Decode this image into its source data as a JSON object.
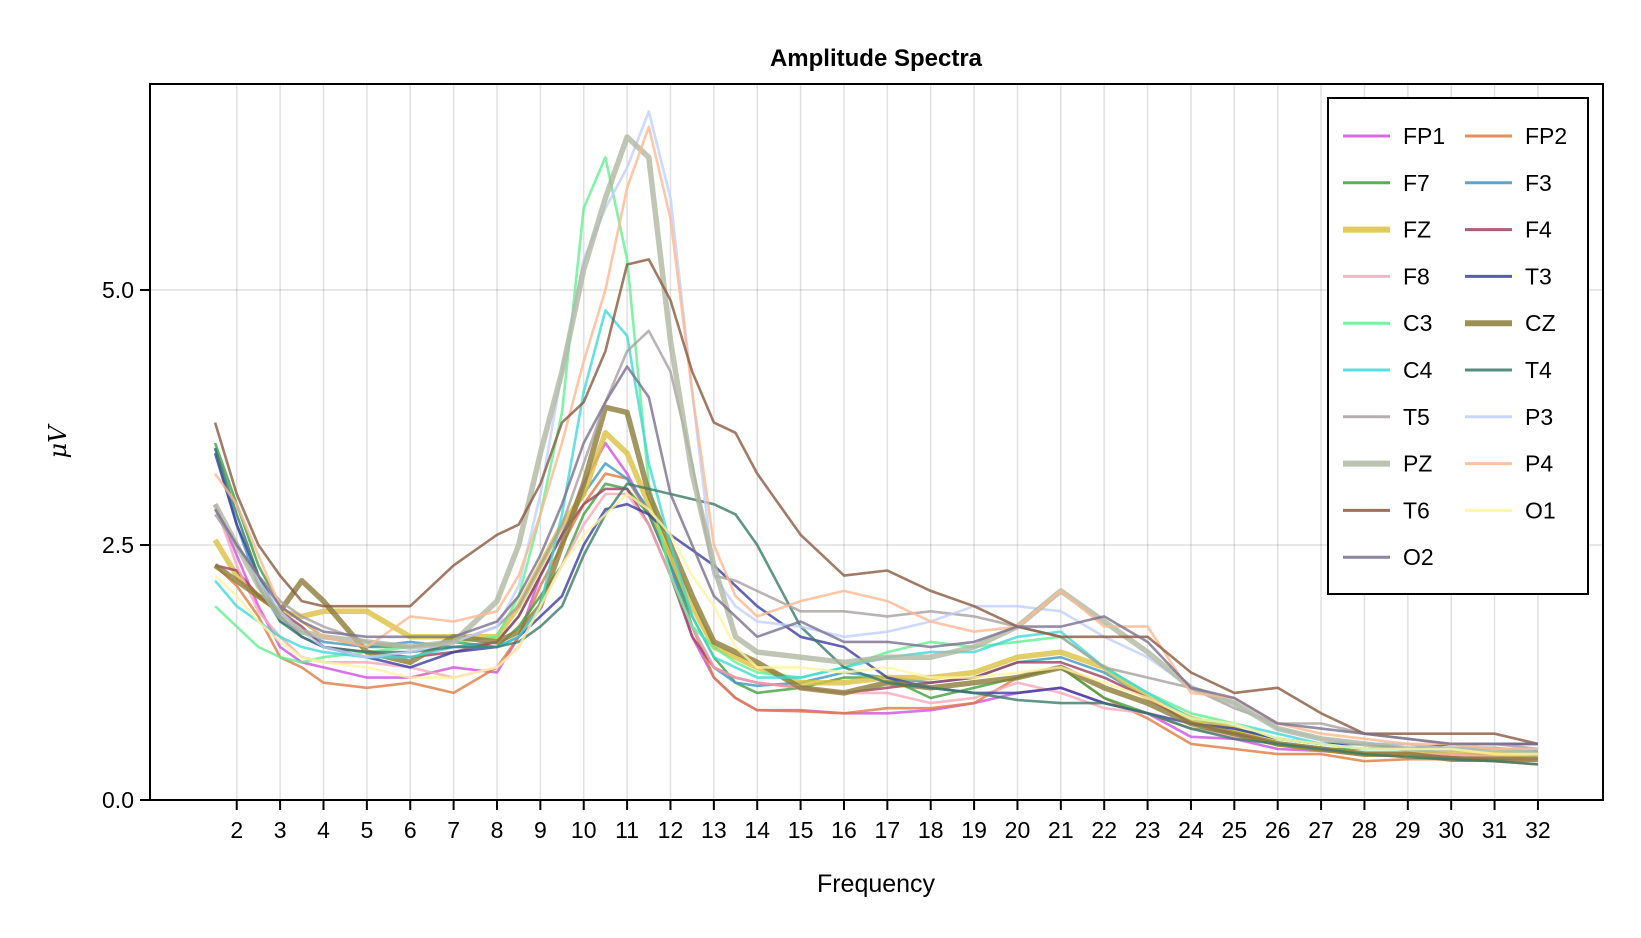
{
  "chart_data": {
    "type": "line",
    "title": "Amplitude Spectra",
    "xlabel": "Frequency",
    "ylabel": "μV",
    "xlim": [
      0,
      33.5
    ],
    "ylim": [
      0,
      7.02
    ],
    "xticks": [
      2,
      3,
      4,
      5,
      6,
      7,
      8,
      9,
      10,
      11,
      12,
      13,
      14,
      15,
      16,
      17,
      18,
      19,
      20,
      21,
      22,
      23,
      24,
      25,
      26,
      27,
      28,
      29,
      30,
      31,
      32
    ],
    "yticks": [
      "0.0",
      "2.5",
      "5.0"
    ],
    "ytick_values": [
      0,
      2.5,
      5.0
    ],
    "grid": true,
    "legend_position": "top-right",
    "legend_columns": 2,
    "x": [
      1.5,
      2,
      2.5,
      3,
      3.5,
      4,
      5,
      6,
      7,
      8,
      8.5,
      9,
      9.5,
      10,
      10.5,
      11,
      11.5,
      12,
      12.5,
      13,
      13.5,
      14,
      15,
      16,
      17,
      18,
      19,
      20,
      21,
      22,
      23,
      24,
      25,
      26,
      27,
      28,
      29,
      30,
      31,
      32
    ],
    "series": [
      {
        "name": "FP1",
        "color": "#d050e0",
        "thick": false,
        "values": [
          2.9,
          2.4,
          1.9,
          1.5,
          1.35,
          1.3,
          1.2,
          1.2,
          1.3,
          1.25,
          1.6,
          2.2,
          2.6,
          3.1,
          3.5,
          3.2,
          2.8,
          2.3,
          1.6,
          1.2,
          1.0,
          0.88,
          0.88,
          0.85,
          0.85,
          0.88,
          0.95,
          1.05,
          1.1,
          0.95,
          0.85,
          0.62,
          0.6,
          0.5,
          0.48,
          0.45,
          0.45,
          0.45,
          0.45,
          0.45
        ]
      },
      {
        "name": "FP2",
        "color": "#e07b40",
        "thick": false,
        "values": [
          2.3,
          2.1,
          1.8,
          1.4,
          1.3,
          1.15,
          1.1,
          1.15,
          1.05,
          1.3,
          1.6,
          2.1,
          2.5,
          2.9,
          3.2,
          3.15,
          2.8,
          2.4,
          1.7,
          1.2,
          1.0,
          0.88,
          0.87,
          0.85,
          0.9,
          0.9,
          0.95,
          1.2,
          1.3,
          1.0,
          0.8,
          0.55,
          0.5,
          0.45,
          0.45,
          0.38,
          0.4,
          0.4,
          0.38,
          0.35
        ]
      },
      {
        "name": "F7",
        "color": "#40a040",
        "thick": false,
        "values": [
          3.5,
          2.9,
          2.3,
          1.9,
          1.75,
          1.6,
          1.5,
          1.5,
          1.55,
          1.5,
          1.7,
          2.0,
          2.3,
          2.8,
          3.1,
          3.05,
          2.8,
          2.3,
          1.8,
          1.4,
          1.15,
          1.05,
          1.1,
          1.2,
          1.2,
          1.0,
          1.1,
          1.2,
          1.3,
          1.0,
          0.85,
          0.7,
          0.65,
          0.55,
          0.5,
          0.5,
          0.5,
          0.45,
          0.42,
          0.4
        ]
      },
      {
        "name": "F3",
        "color": "#4098c0",
        "thick": false,
        "values": [
          3.45,
          2.7,
          2.1,
          1.75,
          1.65,
          1.55,
          1.5,
          1.55,
          1.5,
          1.55,
          1.8,
          2.2,
          2.6,
          3.0,
          3.3,
          3.15,
          2.85,
          2.3,
          1.7,
          1.3,
          1.15,
          1.12,
          1.15,
          1.25,
          1.2,
          1.15,
          1.2,
          1.35,
          1.4,
          1.25,
          1.0,
          0.8,
          0.7,
          0.6,
          0.55,
          0.55,
          0.55,
          0.5,
          0.5,
          0.48
        ]
      },
      {
        "name": "FZ",
        "color": "#dcc040",
        "thick": true,
        "values": [
          2.55,
          2.2,
          2.0,
          1.85,
          1.8,
          1.85,
          1.85,
          1.6,
          1.6,
          1.6,
          1.9,
          2.3,
          2.7,
          3.0,
          3.6,
          3.4,
          2.9,
          2.4,
          1.9,
          1.5,
          1.4,
          1.3,
          1.15,
          1.15,
          1.2,
          1.2,
          1.25,
          1.4,
          1.45,
          1.3,
          1.0,
          0.8,
          0.7,
          0.55,
          0.5,
          0.45,
          0.45,
          0.45,
          0.45,
          0.45
        ]
      },
      {
        "name": "F4",
        "color": "#a04060",
        "thick": false,
        "values": [
          2.3,
          2.25,
          2.0,
          1.85,
          1.7,
          1.5,
          1.45,
          1.4,
          1.45,
          1.55,
          1.8,
          2.2,
          2.6,
          2.9,
          3.05,
          3.05,
          2.7,
          2.2,
          1.6,
          1.3,
          1.2,
          1.15,
          1.1,
          1.05,
          1.1,
          1.15,
          1.2,
          1.35,
          1.35,
          1.2,
          1.0,
          0.75,
          0.65,
          0.55,
          0.5,
          0.45,
          0.45,
          0.42,
          0.4,
          0.4
        ]
      },
      {
        "name": "F8",
        "color": "#f8a8b8",
        "thick": false,
        "values": [
          2.9,
          2.3,
          1.85,
          1.6,
          1.4,
          1.35,
          1.35,
          1.3,
          1.2,
          1.3,
          1.5,
          1.9,
          2.3,
          2.7,
          3.0,
          3.0,
          2.7,
          2.2,
          1.7,
          1.3,
          1.2,
          1.15,
          1.1,
          1.05,
          1.05,
          0.95,
          1.0,
          1.15,
          1.05,
          0.9,
          0.85,
          0.7,
          0.62,
          0.55,
          0.5,
          0.45,
          0.45,
          0.45,
          0.42,
          0.4
        ]
      },
      {
        "name": "T3",
        "color": "#3a3ea0",
        "thick": false,
        "values": [
          3.4,
          2.7,
          2.2,
          1.8,
          1.6,
          1.5,
          1.4,
          1.3,
          1.45,
          1.5,
          1.6,
          1.8,
          2.0,
          2.5,
          2.85,
          2.9,
          2.8,
          2.6,
          2.45,
          2.3,
          2.1,
          1.9,
          1.6,
          1.5,
          1.2,
          1.1,
          1.05,
          1.05,
          1.1,
          0.95,
          0.85,
          0.75,
          0.7,
          0.6,
          0.55,
          0.55,
          0.5,
          0.55,
          0.55,
          0.55
        ]
      },
      {
        "name": "C3",
        "color": "#60f090",
        "thick": false,
        "values": [
          1.9,
          1.7,
          1.5,
          1.4,
          1.35,
          1.4,
          1.45,
          1.5,
          1.55,
          1.6,
          2.0,
          2.8,
          3.8,
          5.8,
          6.3,
          5.3,
          3.1,
          2.2,
          1.7,
          1.5,
          1.35,
          1.25,
          1.2,
          1.3,
          1.45,
          1.55,
          1.5,
          1.55,
          1.6,
          1.3,
          1.05,
          0.85,
          0.75,
          0.6,
          0.55,
          0.5,
          0.5,
          0.5,
          0.5,
          0.45
        ]
      },
      {
        "name": "CZ",
        "color": "#8c7c3a",
        "thick": true,
        "values": [
          2.3,
          2.15,
          2.0,
          1.85,
          2.15,
          1.95,
          1.45,
          1.35,
          1.6,
          1.55,
          1.65,
          1.9,
          2.5,
          3.1,
          3.85,
          3.8,
          3.0,
          2.5,
          2.0,
          1.55,
          1.45,
          1.35,
          1.1,
          1.05,
          1.15,
          1.1,
          1.15,
          1.2,
          1.3,
          1.1,
          0.95,
          0.75,
          0.65,
          0.55,
          0.5,
          0.45,
          0.45,
          0.4,
          0.4,
          0.4
        ]
      },
      {
        "name": "C4",
        "color": "#40d8d8",
        "thick": false,
        "values": [
          2.15,
          1.9,
          1.75,
          1.6,
          1.5,
          1.45,
          1.4,
          1.4,
          1.5,
          1.5,
          1.6,
          1.9,
          2.8,
          4.0,
          4.8,
          4.55,
          3.3,
          2.5,
          1.8,
          1.4,
          1.3,
          1.2,
          1.2,
          1.3,
          1.4,
          1.45,
          1.45,
          1.6,
          1.65,
          1.3,
          1.05,
          0.8,
          0.75,
          0.65,
          0.55,
          0.5,
          0.5,
          0.5,
          0.5,
          0.5
        ]
      },
      {
        "name": "T4",
        "color": "#3a7a68",
        "thick": false,
        "values": [
          3.45,
          2.8,
          2.2,
          1.75,
          1.6,
          1.5,
          1.45,
          1.45,
          1.5,
          1.5,
          1.55,
          1.7,
          1.9,
          2.4,
          2.8,
          3.1,
          3.05,
          3.0,
          2.95,
          2.9,
          2.8,
          2.5,
          1.7,
          1.3,
          1.15,
          1.1,
          1.05,
          0.98,
          0.95,
          0.95,
          0.85,
          0.7,
          0.6,
          0.55,
          0.5,
          0.45,
          0.42,
          0.4,
          0.38,
          0.35
        ]
      },
      {
        "name": "T5",
        "color": "#a8a0a0",
        "thick": false,
        "values": [
          2.8,
          2.5,
          2.2,
          1.95,
          1.8,
          1.7,
          1.55,
          1.5,
          1.55,
          1.7,
          1.9,
          2.3,
          2.7,
          3.3,
          3.9,
          4.4,
          4.6,
          4.2,
          3.3,
          2.2,
          2.15,
          2.05,
          1.85,
          1.85,
          1.8,
          1.85,
          1.8,
          1.7,
          1.6,
          1.3,
          1.2,
          1.1,
          0.9,
          0.75,
          0.75,
          0.65,
          0.6,
          0.55,
          0.55,
          0.5
        ]
      },
      {
        "name": "P3",
        "color": "#c0d0ff",
        "thick": false,
        "values": [
          2.85,
          2.5,
          2.15,
          1.85,
          1.65,
          1.5,
          1.4,
          1.45,
          1.55,
          1.7,
          2.1,
          3.0,
          4.2,
          5.3,
          5.8,
          6.2,
          6.75,
          5.9,
          4.0,
          2.2,
          1.9,
          1.75,
          1.7,
          1.6,
          1.65,
          1.75,
          1.9,
          1.9,
          1.85,
          1.6,
          1.4,
          1.1,
          0.95,
          0.7,
          0.6,
          0.55,
          0.55,
          0.5,
          0.5,
          0.5
        ]
      },
      {
        "name": "PZ",
        "color": "#b0b8a0",
        "thick": true,
        "values": [
          2.9,
          2.5,
          2.1,
          1.8,
          1.65,
          1.6,
          1.55,
          1.5,
          1.55,
          1.95,
          2.5,
          3.4,
          4.2,
          5.2,
          5.9,
          6.5,
          6.3,
          4.5,
          3.2,
          2.3,
          1.6,
          1.45,
          1.4,
          1.35,
          1.4,
          1.4,
          1.5,
          1.7,
          2.05,
          1.75,
          1.45,
          1.1,
          0.95,
          0.7,
          0.6,
          0.55,
          0.5,
          0.5,
          0.5,
          0.45
        ]
      },
      {
        "name": "P4",
        "color": "#ffb890",
        "thick": false,
        "values": [
          3.2,
          2.9,
          2.4,
          1.9,
          1.75,
          1.6,
          1.5,
          1.8,
          1.75,
          1.85,
          2.2,
          2.8,
          3.5,
          4.3,
          5.0,
          6.0,
          6.6,
          5.7,
          4.0,
          2.5,
          2.0,
          1.8,
          1.95,
          2.05,
          1.95,
          1.75,
          1.65,
          1.7,
          2.05,
          1.7,
          1.7,
          1.05,
          1.0,
          0.75,
          0.65,
          0.6,
          0.55,
          0.55,
          0.5,
          0.5
        ]
      },
      {
        "name": "T6",
        "color": "#8a5a40",
        "thick": false,
        "values": [
          3.7,
          3.0,
          2.5,
          2.2,
          1.95,
          1.9,
          1.9,
          1.9,
          2.3,
          2.6,
          2.7,
          3.1,
          3.7,
          3.9,
          4.4,
          5.25,
          5.3,
          4.9,
          4.2,
          3.7,
          3.6,
          3.2,
          2.6,
          2.2,
          2.25,
          2.05,
          1.9,
          1.7,
          1.6,
          1.6,
          1.6,
          1.25,
          1.05,
          1.1,
          0.85,
          0.65,
          0.65,
          0.65,
          0.65,
          0.55
        ]
      },
      {
        "name": "O1",
        "color": "#fff4a0",
        "thick": false,
        "values": [
          2.2,
          2.0,
          1.75,
          1.55,
          1.4,
          1.35,
          1.3,
          1.2,
          1.2,
          1.3,
          1.5,
          1.9,
          2.3,
          2.6,
          2.8,
          3.0,
          2.85,
          2.6,
          2.2,
          1.9,
          1.5,
          1.3,
          1.3,
          1.25,
          1.3,
          1.2,
          1.2,
          1.25,
          1.3,
          1.15,
          1.0,
          0.8,
          0.75,
          0.6,
          0.55,
          0.5,
          0.5,
          0.5,
          0.45,
          0.45
        ]
      },
      {
        "name": "O2",
        "color": "#7a7090",
        "thick": false,
        "values": [
          2.85,
          2.5,
          2.2,
          1.9,
          1.75,
          1.65,
          1.6,
          1.6,
          1.6,
          1.75,
          2.0,
          2.4,
          2.9,
          3.5,
          3.9,
          4.25,
          3.95,
          3.0,
          2.5,
          2.0,
          1.8,
          1.6,
          1.75,
          1.55,
          1.55,
          1.5,
          1.55,
          1.7,
          1.7,
          1.8,
          1.55,
          1.1,
          1.0,
          0.75,
          0.7,
          0.65,
          0.6,
          0.55,
          0.55,
          0.55
        ]
      }
    ],
    "legend_order": [
      "FP1",
      "FP2",
      "F7",
      "F3",
      "FZ",
      "F4",
      "F8",
      "T3",
      "C3",
      "CZ",
      "C4",
      "T4",
      "T5",
      "P3",
      "PZ",
      "P4",
      "T6",
      "O1",
      "O2"
    ]
  }
}
